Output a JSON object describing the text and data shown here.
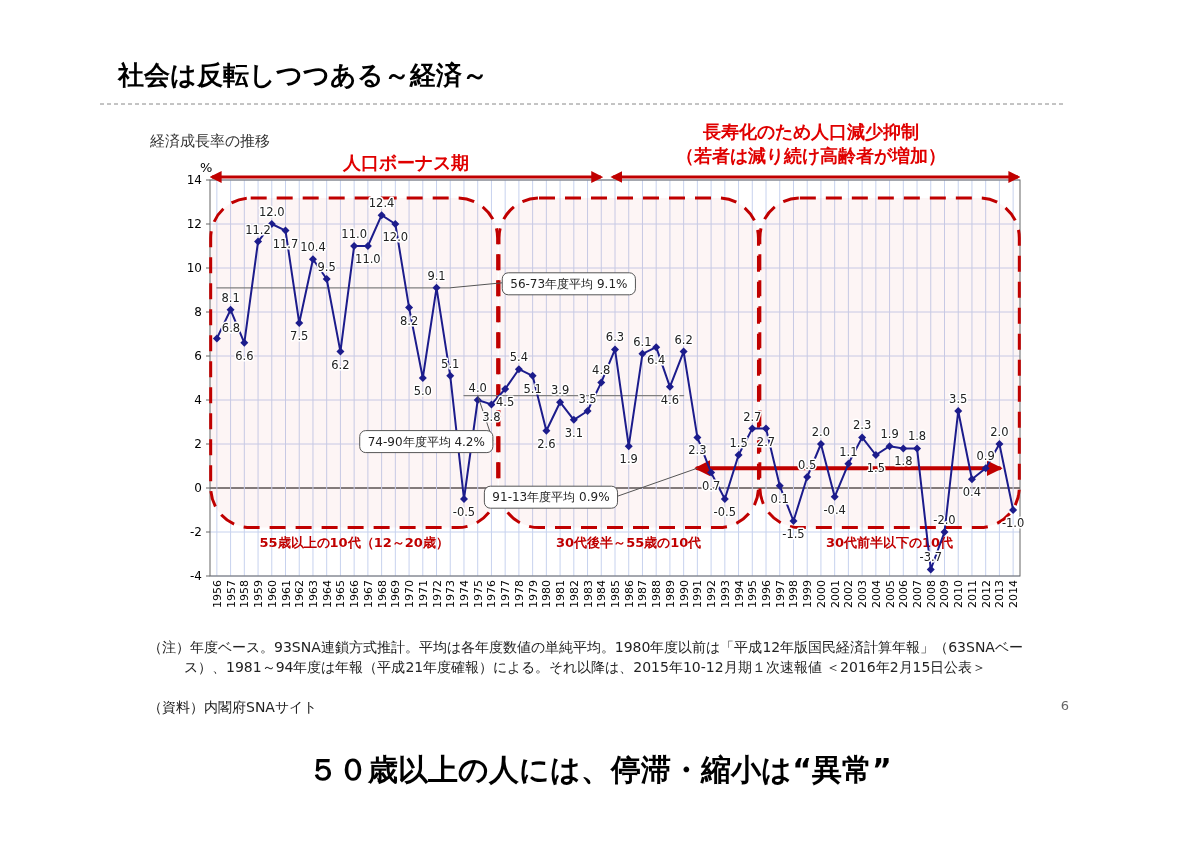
{
  "chart_data": {
    "type": "line",
    "title": "社会は反転しつつある～経済～",
    "subtitle": "経済成長率の推移",
    "ylabel": "%",
    "categories": [
      "1956",
      "1957",
      "1958",
      "1959",
      "1960",
      "1961",
      "1962",
      "1963",
      "1964",
      "1965",
      "1966",
      "1967",
      "1968",
      "1969",
      "1970",
      "1971",
      "1972",
      "1973",
      "1974",
      "1975",
      "1976",
      "1977",
      "1978",
      "1979",
      "1980",
      "1981",
      "1982",
      "1983",
      "1984",
      "1985",
      "1986",
      "1987",
      "1988",
      "1989",
      "1990",
      "1991",
      "1992",
      "1993",
      "1994",
      "1995",
      "1996",
      "1997",
      "1998",
      "1999",
      "2000",
      "2001",
      "2002",
      "2003",
      "2004",
      "2005",
      "2006",
      "2007",
      "2008",
      "2009",
      "2010",
      "2011",
      "2012",
      "2013",
      "2014"
    ],
    "series": [
      {
        "color": "#1c1c8c",
        "marker": "diamond",
        "values": [
          6.8,
          8.1,
          6.6,
          11.2,
          12.0,
          11.7,
          7.5,
          10.4,
          9.5,
          6.2,
          11.0,
          11.0,
          12.4,
          12.0,
          8.2,
          5.0,
          9.1,
          5.1,
          -0.5,
          4.0,
          3.8,
          4.5,
          5.4,
          5.1,
          2.6,
          3.9,
          3.1,
          3.5,
          4.8,
          6.3,
          1.9,
          6.1,
          6.4,
          4.6,
          6.2,
          2.3,
          0.7,
          -0.5,
          1.5,
          2.7,
          2.7,
          0.1,
          -1.5,
          0.5,
          2.0,
          -0.4,
          1.1,
          2.3,
          1.5,
          1.9,
          1.8,
          1.8,
          -3.7,
          -2.0,
          3.5,
          0.4,
          0.9,
          2.0,
          -1.0
        ],
        "value_labels": [
          "6.8",
          "8.1",
          "6.6",
          "11.2",
          "12.0",
          "11.7",
          "7.5",
          "10.4",
          "9.5",
          "6.2",
          "11.0",
          "11.0",
          "12.4",
          "12.0",
          "8.2",
          "5.0",
          "9.1",
          "5.1",
          "-0.5",
          "4.0",
          "3.8",
          "4.5",
          "5.4",
          "5.1",
          "2.6",
          "3.9",
          "3.1",
          "3.5",
          "4.8",
          "6.3",
          "1.9",
          "6.1",
          "6.4",
          "4.6",
          "6.2",
          "2.3",
          "0.7",
          "-0.5",
          "1.5",
          "2.7",
          "2.7",
          "0.1",
          "-1.5",
          "0.5",
          "2.0",
          "-0.4",
          "1.1",
          "2.3",
          "1.5",
          "1.9",
          "1.8",
          "1.8",
          "-3.7",
          "-2.0",
          "3.5",
          "0.4",
          "0.9",
          "2.0",
          "-1.0"
        ]
      },
      {
        "type": "line",
        "color": "#808080",
        "marker": "none",
        "values": [
          9.1,
          9.1,
          9.1,
          9.1,
          9.1,
          9.1,
          9.1,
          9.1,
          9.1,
          9.1,
          9.1,
          9.1,
          9.1,
          9.1,
          9.1,
          9.1,
          9.1,
          9.1,
          null,
          null,
          null,
          null,
          null,
          null,
          null,
          null,
          null,
          null,
          null,
          null,
          null,
          null,
          null,
          null,
          null,
          null,
          null,
          null,
          null,
          null,
          null,
          null,
          null,
          null,
          null,
          null,
          null,
          null,
          null,
          null,
          null,
          null,
          null,
          null,
          null,
          null,
          null,
          null,
          null
        ]
      },
      {
        "type": "line",
        "color": "#808080",
        "marker": "none",
        "values": [
          null,
          null,
          null,
          null,
          null,
          null,
          null,
          null,
          null,
          null,
          null,
          null,
          null,
          null,
          null,
          null,
          null,
          null,
          4.2,
          4.2,
          4.2,
          4.2,
          4.2,
          4.2,
          4.2,
          4.2,
          4.2,
          4.2,
          4.2,
          4.2,
          4.2,
          4.2,
          4.2,
          4.2,
          4.2,
          null,
          null,
          null,
          null,
          null,
          null,
          null,
          null,
          null,
          null,
          null,
          null,
          null,
          null,
          null,
          null,
          null,
          null,
          null,
          null,
          null,
          null,
          null,
          null
        ]
      },
      {
        "type": "line",
        "color": "#c00000",
        "marker": "none",
        "values": [
          null,
          null,
          null,
          null,
          null,
          null,
          null,
          null,
          null,
          null,
          null,
          null,
          null,
          null,
          null,
          null,
          null,
          null,
          null,
          null,
          null,
          null,
          null,
          null,
          null,
          null,
          null,
          null,
          null,
          null,
          null,
          null,
          null,
          null,
          null,
          0.9,
          0.9,
          0.9,
          0.9,
          0.9,
          0.9,
          0.9,
          0.9,
          0.9,
          0.9,
          0.9,
          0.9,
          0.9,
          0.9,
          0.9,
          0.9,
          0.9,
          0.9,
          0.9,
          0.9,
          0.9,
          0.9,
          0.9,
          null
        ]
      }
    ],
    "ylim": [
      -4,
      14
    ],
    "yticks": [
      -4,
      -2,
      0,
      2,
      4,
      6,
      8,
      10,
      12,
      14
    ],
    "grid": true,
    "bands": [
      {
        "axis": "x",
        "from": "1956",
        "to": "1976",
        "label": "55歳以上の10代（12～20歳）",
        "color": "#c00000"
      },
      {
        "axis": "x",
        "from": "1977",
        "to": "1995",
        "label": "30代後半～55歳の10代",
        "color": "#c00000"
      },
      {
        "axis": "x",
        "from": "1996",
        "to": "2014",
        "label": "30代前半以下の10代",
        "color": "#c00000"
      }
    ],
    "annotations": [
      {
        "text": "56-73年度平均 9.1%",
        "x": "1973",
        "y": 9.1
      },
      {
        "text": "74-90年度平均 4.2%",
        "x": "1975",
        "y": 4.2
      },
      {
        "text": "91-13年度平均 0.9%",
        "x": "1991",
        "y": 0.9
      },
      "人口ボーナス期",
      "長寿化のため人口減少抑制",
      "（若者は減り続け高齢者が増加）",
      "（注）年度ベース。93SNA連鎖方式推計。平均は各年度数値の単純平均。1980年度以前は「平成12年版国民経済計算年報」（63SNAベース）、1981～94年度は年報（平成21年度確報）による。それ以降は、2015年10-12月期１次速報値 ＜2016年2月15日公表＞",
      "（資料）内閣府SNAサイト",
      "５０歳以上の人には、停滞・縮小は“異常”",
      "6"
    ]
  }
}
